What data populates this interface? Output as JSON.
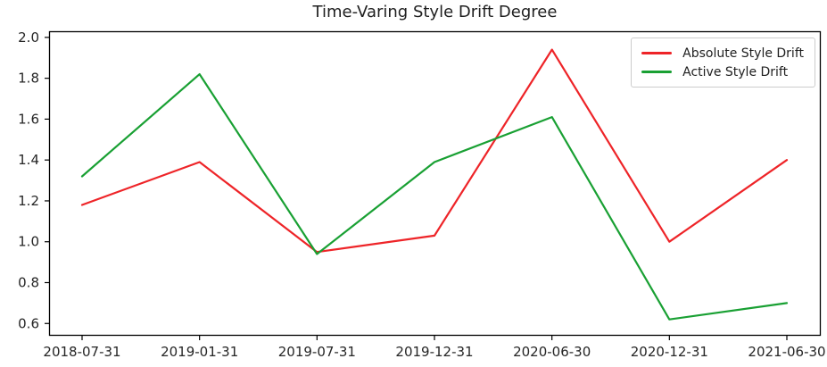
{
  "chart_data": {
    "type": "line",
    "title": "Time-Varing Style Drift Degree",
    "xlabel": "",
    "ylabel": "",
    "grid": false,
    "legend_position": "upper right",
    "categories": [
      "2018-07-31",
      "2019-01-31",
      "2019-07-31",
      "2019-12-31",
      "2020-06-30",
      "2020-12-31",
      "2021-06-30"
    ],
    "series": [
      {
        "name": "Absolute Style Drift",
        "color": "#ee2428",
        "values": [
          1.18,
          1.39,
          0.95,
          1.03,
          1.94,
          1.0,
          1.4
        ]
      },
      {
        "name": "Active Style Drift",
        "color": "#19a033",
        "values": [
          1.32,
          1.82,
          0.94,
          1.39,
          1.61,
          0.62,
          0.7
        ]
      }
    ],
    "ylim": [
      0.54,
      2.03
    ],
    "yticks": [
      0.6,
      0.8,
      1.0,
      1.2,
      1.4,
      1.6,
      1.8,
      2.0
    ],
    "ytick_labels": [
      "0.6",
      "0.8",
      "1.0",
      "1.2",
      "1.4",
      "1.6",
      "1.8",
      "2.0"
    ],
    "axis_color": "#000000",
    "tick_label_color": "#262626"
  }
}
